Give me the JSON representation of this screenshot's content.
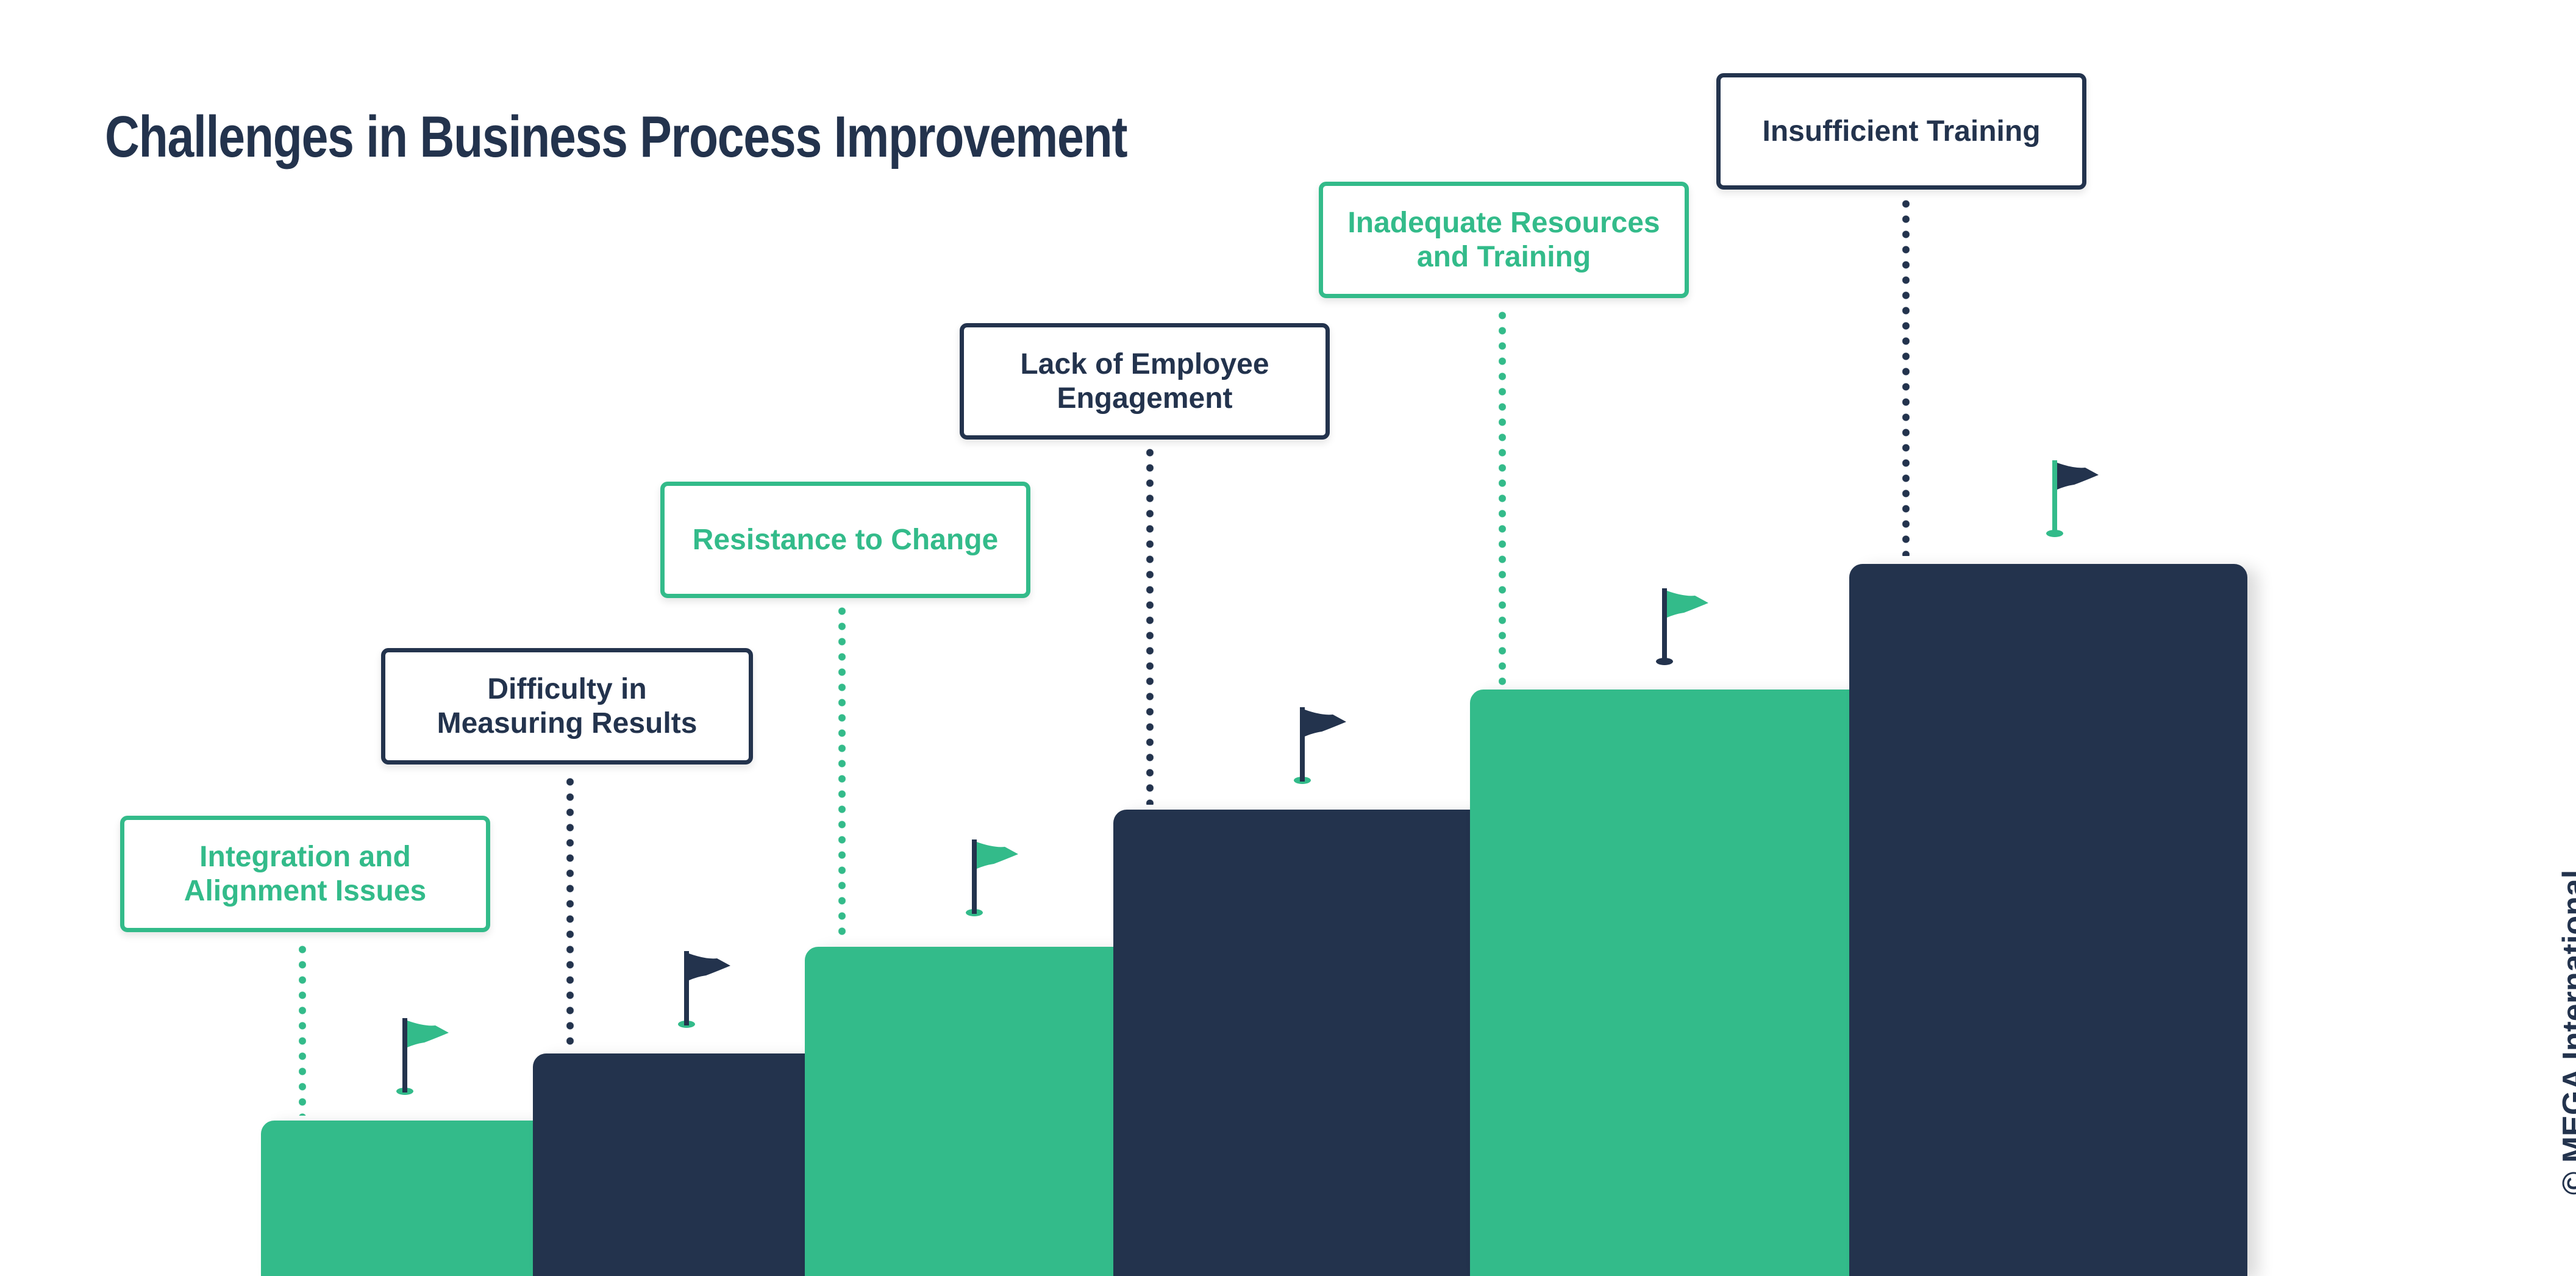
{
  "title": "Challenges in Business Process Improvement",
  "steps": [
    {
      "label": "Integration and Alignment Issues",
      "color": "#33bb8a"
    },
    {
      "label": "Difficulty in Measuring Results",
      "color": "#23334d"
    },
    {
      "label": "Resistance to Change",
      "color": "#33bb8a"
    },
    {
      "label": "Lack of Employee Engagement",
      "color": "#23334d"
    },
    {
      "label": "Inadequate Resources and Training",
      "color": "#33bb8a"
    },
    {
      "label": "Insufficient Training",
      "color": "#23334d"
    }
  ],
  "icons": {
    "flag": "flag-icon"
  },
  "copyright": "© MEGA International"
}
